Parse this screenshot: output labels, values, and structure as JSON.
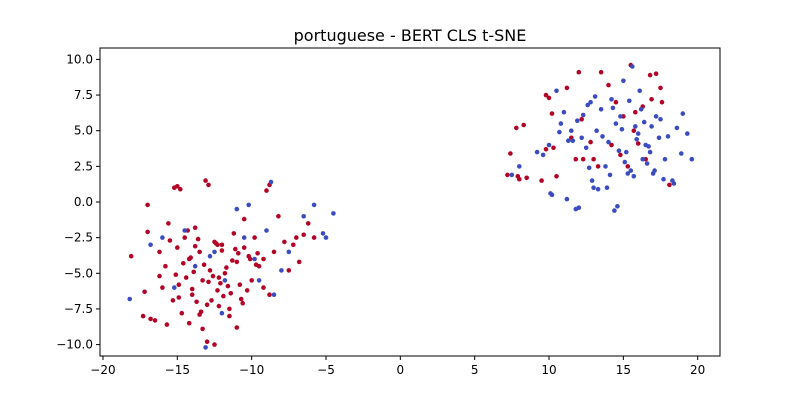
{
  "chart_data": {
    "type": "scatter",
    "title": "portuguese - BERT CLS t-SNE",
    "xlabel": "",
    "ylabel": "",
    "xlim": [
      -20.2,
      21.5
    ],
    "ylim": [
      -10.8,
      10.8
    ],
    "xticks": [
      -20,
      -15,
      -10,
      -5,
      0,
      5,
      10,
      15,
      20
    ],
    "yticks": [
      10.0,
      7.5,
      5.0,
      2.5,
      0.0,
      -2.5,
      -5.0,
      -7.5,
      -10.0
    ],
    "xtick_labels": [
      "−20",
      "−15",
      "−10",
      "−5",
      "0",
      "5",
      "10",
      "15",
      "20"
    ],
    "ytick_labels": [
      "10.0",
      "7.5",
      "5.0",
      "2.5",
      "0.0",
      "−2.5",
      "−5.0",
      "−7.5",
      "−10.0"
    ],
    "grid": false,
    "legend": "none",
    "series": [
      {
        "color": "#b40426",
        "x": [
          -18.1,
          -17.3,
          -17.0,
          -16.2,
          -15.8,
          -15.6,
          -15.2,
          -15.0,
          -14.9,
          -14.7,
          -14.5,
          -14.2,
          -14.0,
          -13.8,
          -13.5,
          -13.3,
          -13.0,
          -12.8,
          -12.5,
          -12.3,
          -12.0,
          -11.8,
          -11.5,
          -11.2,
          -11.0,
          -10.7,
          -10.5,
          -10.2,
          -10.0,
          -9.8,
          -9.5,
          -9.2,
          -9.0,
          -8.8,
          -8.5,
          -8.2,
          -7.8,
          -7.5,
          -7.2,
          -7.0,
          -6.8,
          -6.5,
          -6.2,
          -5.8,
          -13.1,
          -12.9,
          -15.0,
          -14.8,
          -8.8,
          -9.2,
          -17.0,
          -16.8,
          -13.0,
          -12.5,
          -11.0,
          -16.0,
          -14.2,
          -13.7,
          -12.2,
          -11.5,
          -10.8,
          -10.3,
          -9.7,
          -15.5,
          -14.0,
          -12.6,
          -11.7,
          -10.5,
          -17.2,
          -16.5,
          -15.3,
          -14.4,
          -13.9,
          -12.4,
          -11.9,
          -11.3,
          -10.1,
          -9.6,
          -13.3,
          -12.1,
          -11.1,
          -14.6,
          -13.4,
          -12.7,
          -15.1,
          -14.1,
          -13.6,
          -12.0,
          -11.6,
          -16.2,
          -15.7,
          -13.5,
          -12.2,
          -10.9,
          -14.9,
          -13.8,
          -12.9,
          -14.3,
          -13.2,
          -12.3,
          -11.4,
          -10.6,
          7.2,
          7.4,
          7.8,
          8.0,
          8.5,
          9.5,
          9.8,
          10.2,
          10.5,
          11.2,
          11.8,
          12.0,
          12.3,
          12.8,
          13.5,
          14.0,
          14.5,
          15.0,
          15.5,
          15.8,
          16.0,
          16.3,
          16.8,
          17.2,
          17.5,
          18.1,
          16.5,
          15.3,
          14.2,
          13.0,
          12.2,
          11.5,
          10.0,
          9.8,
          15.7,
          16.9,
          17.6,
          14.8,
          13.3,
          10.3,
          8.3,
          7.9
        ],
        "y": [
          -3.8,
          -8.0,
          -2.1,
          -5.2,
          -4.5,
          -1.5,
          1.0,
          -3.2,
          -5.8,
          -7.8,
          -2.5,
          -4.0,
          -6.5,
          -1.8,
          -3.5,
          -5.5,
          -7.2,
          -4.8,
          -2.8,
          -6.2,
          -3.0,
          -5.0,
          -7.5,
          -2.2,
          -4.2,
          -6.8,
          -1.2,
          -3.8,
          -5.5,
          -2.5,
          -4.5,
          -6.0,
          0.8,
          1.2,
          -3.5,
          -1.0,
          -2.8,
          -4.8,
          -3.0,
          -2.5,
          -4.2,
          -2.3,
          -1.5,
          -2.5,
          1.5,
          1.2,
          1.1,
          0.9,
          -6.5,
          -4.0,
          -0.2,
          -8.2,
          -9.8,
          -10.0,
          -8.8,
          -6.0,
          -8.5,
          -7.0,
          -7.3,
          -8.0,
          -5.8,
          -6.2,
          -4.4,
          -2.7,
          -6.1,
          -5.2,
          -4.6,
          -3.2,
          -6.3,
          -8.3,
          -6.9,
          -5.3,
          -4.9,
          -2.9,
          -6.6,
          -4.1,
          -4.0,
          -3.6,
          -8.9,
          -5.7,
          -3.3,
          -4.3,
          -7.7,
          -6.9,
          -5.1,
          -3.9,
          -2.6,
          -3.4,
          -5.9,
          -3.5,
          -8.6,
          -7.9,
          -5.3,
          -3.6,
          -6.7,
          -3.1,
          -5.6,
          -2.0,
          -4.4,
          -3.0,
          -6.4,
          -7.1,
          1.9,
          3.4,
          5.2,
          1.6,
          1.7,
          1.5,
          3.7,
          6.2,
          1.8,
          8.0,
          3.0,
          9.1,
          3.0,
          4.2,
          9.1,
          8.2,
          7.0,
          6.0,
          9.6,
          6.3,
          4.1,
          6.7,
          8.9,
          9.0,
          8.0,
          1.2,
          3.0,
          2.5,
          4.0,
          3.0,
          5.8,
          4.5,
          7.3,
          7.5,
          5.0,
          7.2,
          7.0,
          3.3,
          2.5,
          3.8,
          5.4,
          1.8
        ]
      },
      {
        "color": "#3b4cc0",
        "x": [
          -18.2,
          -16.8,
          -16.0,
          -15.2,
          -14.5,
          -13.8,
          -13.1,
          -12.5,
          -11.8,
          -11.0,
          -10.5,
          -10.2,
          -9.8,
          -9.5,
          -9.0,
          -8.7,
          -8.5,
          -8.0,
          -7.5,
          -6.5,
          -5.8,
          -5.2,
          -5.0,
          -4.5,
          -12.0,
          -12.8,
          7.5,
          8.0,
          9.2,
          10.0,
          10.2,
          10.5,
          10.8,
          11.0,
          11.2,
          11.5,
          11.8,
          12.0,
          12.2,
          12.5,
          12.8,
          13.0,
          13.2,
          13.5,
          13.8,
          14.0,
          14.2,
          14.5,
          14.8,
          15.0,
          15.2,
          15.5,
          15.8,
          16.0,
          16.2,
          16.5,
          16.8,
          17.0,
          17.2,
          17.5,
          17.8,
          18.0,
          18.3,
          18.6,
          19.0,
          19.3,
          19.6,
          13.3,
          14.6,
          15.1,
          16.4,
          17.7,
          12.6,
          11.3,
          10.1,
          9.6,
          14.1,
          15.6,
          16.1,
          13.1,
          14.9,
          12.9,
          15.4,
          16.7,
          17.1,
          18.4,
          13.6,
          14.3,
          15.9,
          16.6,
          12.3,
          11.6,
          10.7,
          17.4,
          18.9,
          13.9,
          15.3,
          16.3,
          14.7,
          12.7,
          11.9,
          16.9,
          15.7,
          14.4
        ],
        "y": [
          -6.8,
          -3.0,
          -2.5,
          -6.0,
          -2.0,
          -4.5,
          -10.2,
          -3.5,
          -5.5,
          -0.5,
          -2.5,
          -0.2,
          -4.0,
          -5.5,
          -2.0,
          1.4,
          -6.5,
          -4.8,
          -3.5,
          -1.0,
          -0.2,
          -2.2,
          -2.5,
          -0.8,
          -7.8,
          -3.8,
          1.9,
          2.5,
          3.5,
          4.0,
          0.5,
          7.8,
          5.5,
          6.3,
          0.2,
          5.0,
          -0.5,
          -0.4,
          4.5,
          3.8,
          7.0,
          1.0,
          5.0,
          6.5,
          2.5,
          4.2,
          7.2,
          5.5,
          6.0,
          8.5,
          3.5,
          2.2,
          5.3,
          4.8,
          6.5,
          4.0,
          3.5,
          2.0,
          6.0,
          5.8,
          3.0,
          4.6,
          1.5,
          5.2,
          6.2,
          4.8,
          3.0,
          0.9,
          -0.3,
          2.8,
          5.6,
          1.6,
          6.8,
          4.3,
          0.6,
          3.3,
          1.9,
          9.5,
          7.8,
          7.4,
          5.1,
          1.5,
          7.1,
          3.9,
          2.2,
          1.3,
          4.6,
          6.6,
          4.4,
          2.7,
          6.1,
          4.3,
          4.9,
          4.5,
          3.4,
          1.0,
          2.0,
          3.0,
          3.6,
          2.4,
          5.7,
          5.3,
          1.8,
          -0.6
        ]
      }
    ]
  }
}
